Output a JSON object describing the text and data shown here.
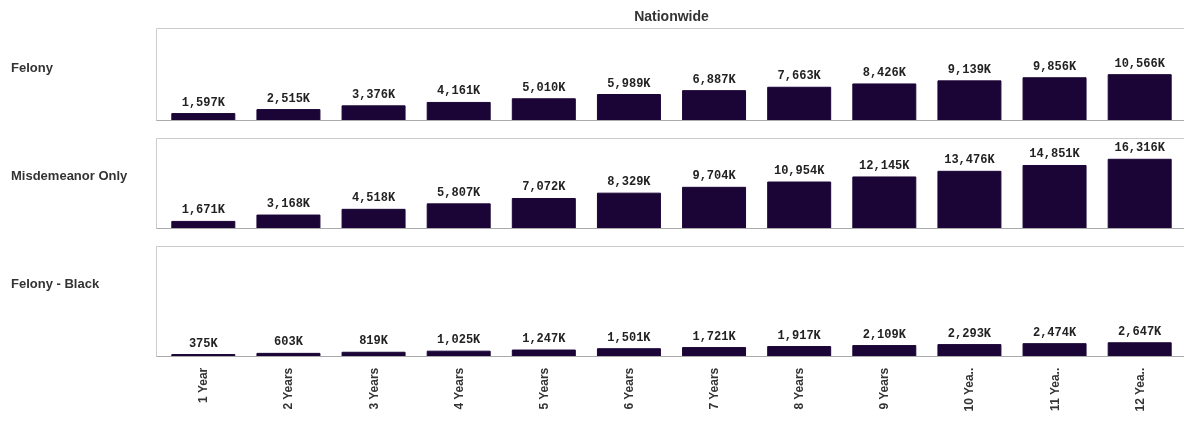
{
  "chart_data": [
    {
      "type": "bar",
      "title": "Nationwide",
      "ylabel": "Felony",
      "categories": [
        null,
        null,
        null,
        null,
        null,
        null,
        null,
        null,
        null,
        null,
        null,
        null
      ],
      "values": [
        1597,
        2515,
        3376,
        4161,
        5010,
        5989,
        6887,
        7663,
        8426,
        9139,
        9856,
        10566
      ],
      "value_labels": [
        "1,597K",
        "2,515K",
        "3,376K",
        "4,161K",
        "5,010K",
        "5,989K",
        "6,887K",
        "7,663K",
        "8,426K",
        "9,139K",
        "9,856K",
        "10,566K"
      ],
      "color": "#1a0536",
      "tick_labels": false
    },
    {
      "type": "bar",
      "ylabel": "Misdemeanor Only",
      "categories": [
        null,
        null,
        null,
        null,
        null,
        null,
        null,
        null,
        null,
        null,
        null,
        null
      ],
      "values": [
        1671,
        3168,
        4518,
        5807,
        7072,
        8329,
        9704,
        10954,
        12145,
        13476,
        14851,
        16316
      ],
      "value_labels": [
        "1,671K",
        "3,168K",
        "4,518K",
        "5,807K",
        "7,072K",
        "8,329K",
        "9,704K",
        "10,954K",
        "12,145K",
        "13,476K",
        "14,851K",
        "16,316K"
      ],
      "color": "#1a0536",
      "tick_labels": false
    },
    {
      "type": "bar",
      "ylabel": "Felony - Black",
      "categories": [
        "1 Year",
        "2 Years",
        "3 Years",
        "4 Years",
        "5 Years",
        "6 Years",
        "7 Years",
        "8 Years",
        "9 Years",
        "10 Yea..",
        "11 Yea..",
        "12 Yea.."
      ],
      "values": [
        375,
        603,
        819,
        1025,
        1247,
        1501,
        1721,
        1917,
        2109,
        2293,
        2474,
        2647
      ],
      "value_labels": [
        "375K",
        "603K",
        "819K",
        "1,025K",
        "1,247K",
        "1,501K",
        "1,721K",
        "1,917K",
        "2,109K",
        "2,293K",
        "2,474K",
        "2,647K"
      ],
      "color": "#1a0536",
      "tick_labels": "x"
    }
  ]
}
